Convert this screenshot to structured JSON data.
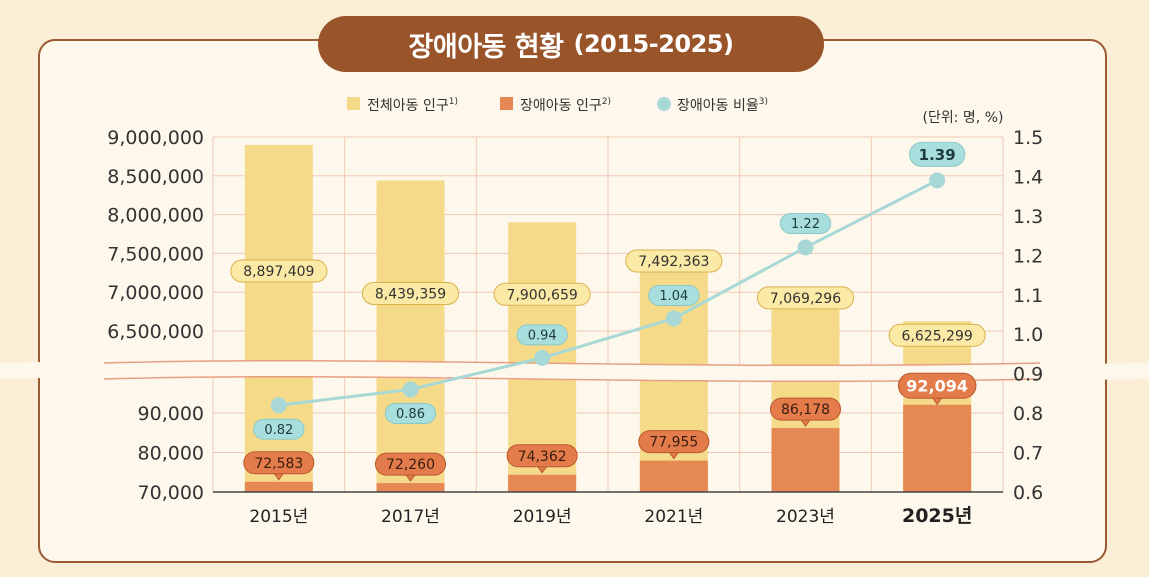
{
  "colors": {
    "page_bg": "#fbeed6",
    "panel_bg": "#fef8ec",
    "panel_border": "#9a5a32",
    "title_bg": "#99542a",
    "total_bar": "#f5da8a",
    "disabled_bar": "#e58853",
    "ratio_line": "#a8d8d6",
    "ratio_marker": "#a8d8d6"
  },
  "chart_data": {
    "type": "bar",
    "title": "장애아동 현황",
    "title_period": "(2015-2025)",
    "unit_note": "(단위: 명, %)",
    "categories": [
      "2015년",
      "2017년",
      "2019년",
      "2021년",
      "2023년",
      "2025년"
    ],
    "highlight_category": "2025년",
    "legend_position": "top-center",
    "series": [
      {
        "name": "전체아동 인구",
        "sup": "1)",
        "kind": "bar",
        "axis": "left",
        "values": [
          8897409,
          8439359,
          7900659,
          7492363,
          7069296,
          6625299
        ],
        "labels": [
          "8,897,409",
          "8,439,359",
          "7,900,659",
          "7,492,363",
          "7,069,296",
          "6,625,299"
        ]
      },
      {
        "name": "장애아동 인구",
        "sup": "2)",
        "kind": "bar",
        "axis": "left",
        "values": [
          72583,
          72260,
          74362,
          77955,
          86178,
          92094
        ],
        "labels": [
          "72,583",
          "72,260",
          "74,362",
          "77,955",
          "86,178",
          "92,094"
        ]
      },
      {
        "name": "장애아동 비율",
        "sup": "3)",
        "kind": "line",
        "axis": "right",
        "values": [
          0.82,
          0.86,
          0.94,
          1.04,
          1.22,
          1.39
        ],
        "labels": [
          "0.82",
          "0.86",
          "0.94",
          "1.04",
          "1.22",
          "1.39"
        ]
      }
    ],
    "left_axis_upper": {
      "range": [
        6500000,
        9000000
      ],
      "ticks": [
        6500000,
        7000000,
        7500000,
        8000000,
        8500000,
        9000000
      ],
      "tick_labels": [
        "6,500,000",
        "7,000,000",
        "7,500,000",
        "8,000,000",
        "8,500,000",
        "9,000,000"
      ]
    },
    "left_axis_lower": {
      "range": [
        70000,
        90000
      ],
      "ticks": [
        70000,
        80000,
        90000
      ],
      "tick_labels": [
        "70,000",
        "80,000",
        "90,000"
      ]
    },
    "right_axis": {
      "range": [
        0.6,
        1.5
      ],
      "ticks": [
        0.6,
        0.7,
        0.8,
        0.9,
        1.0,
        1.1,
        1.2,
        1.3,
        1.4,
        1.5
      ],
      "tick_labels": [
        "0.6",
        "0.7",
        "0.8",
        "0.9",
        "1.0",
        "1.1",
        "1.2",
        "1.3",
        "1.4",
        "1.5"
      ]
    },
    "axis_break": true,
    "grid": true
  }
}
